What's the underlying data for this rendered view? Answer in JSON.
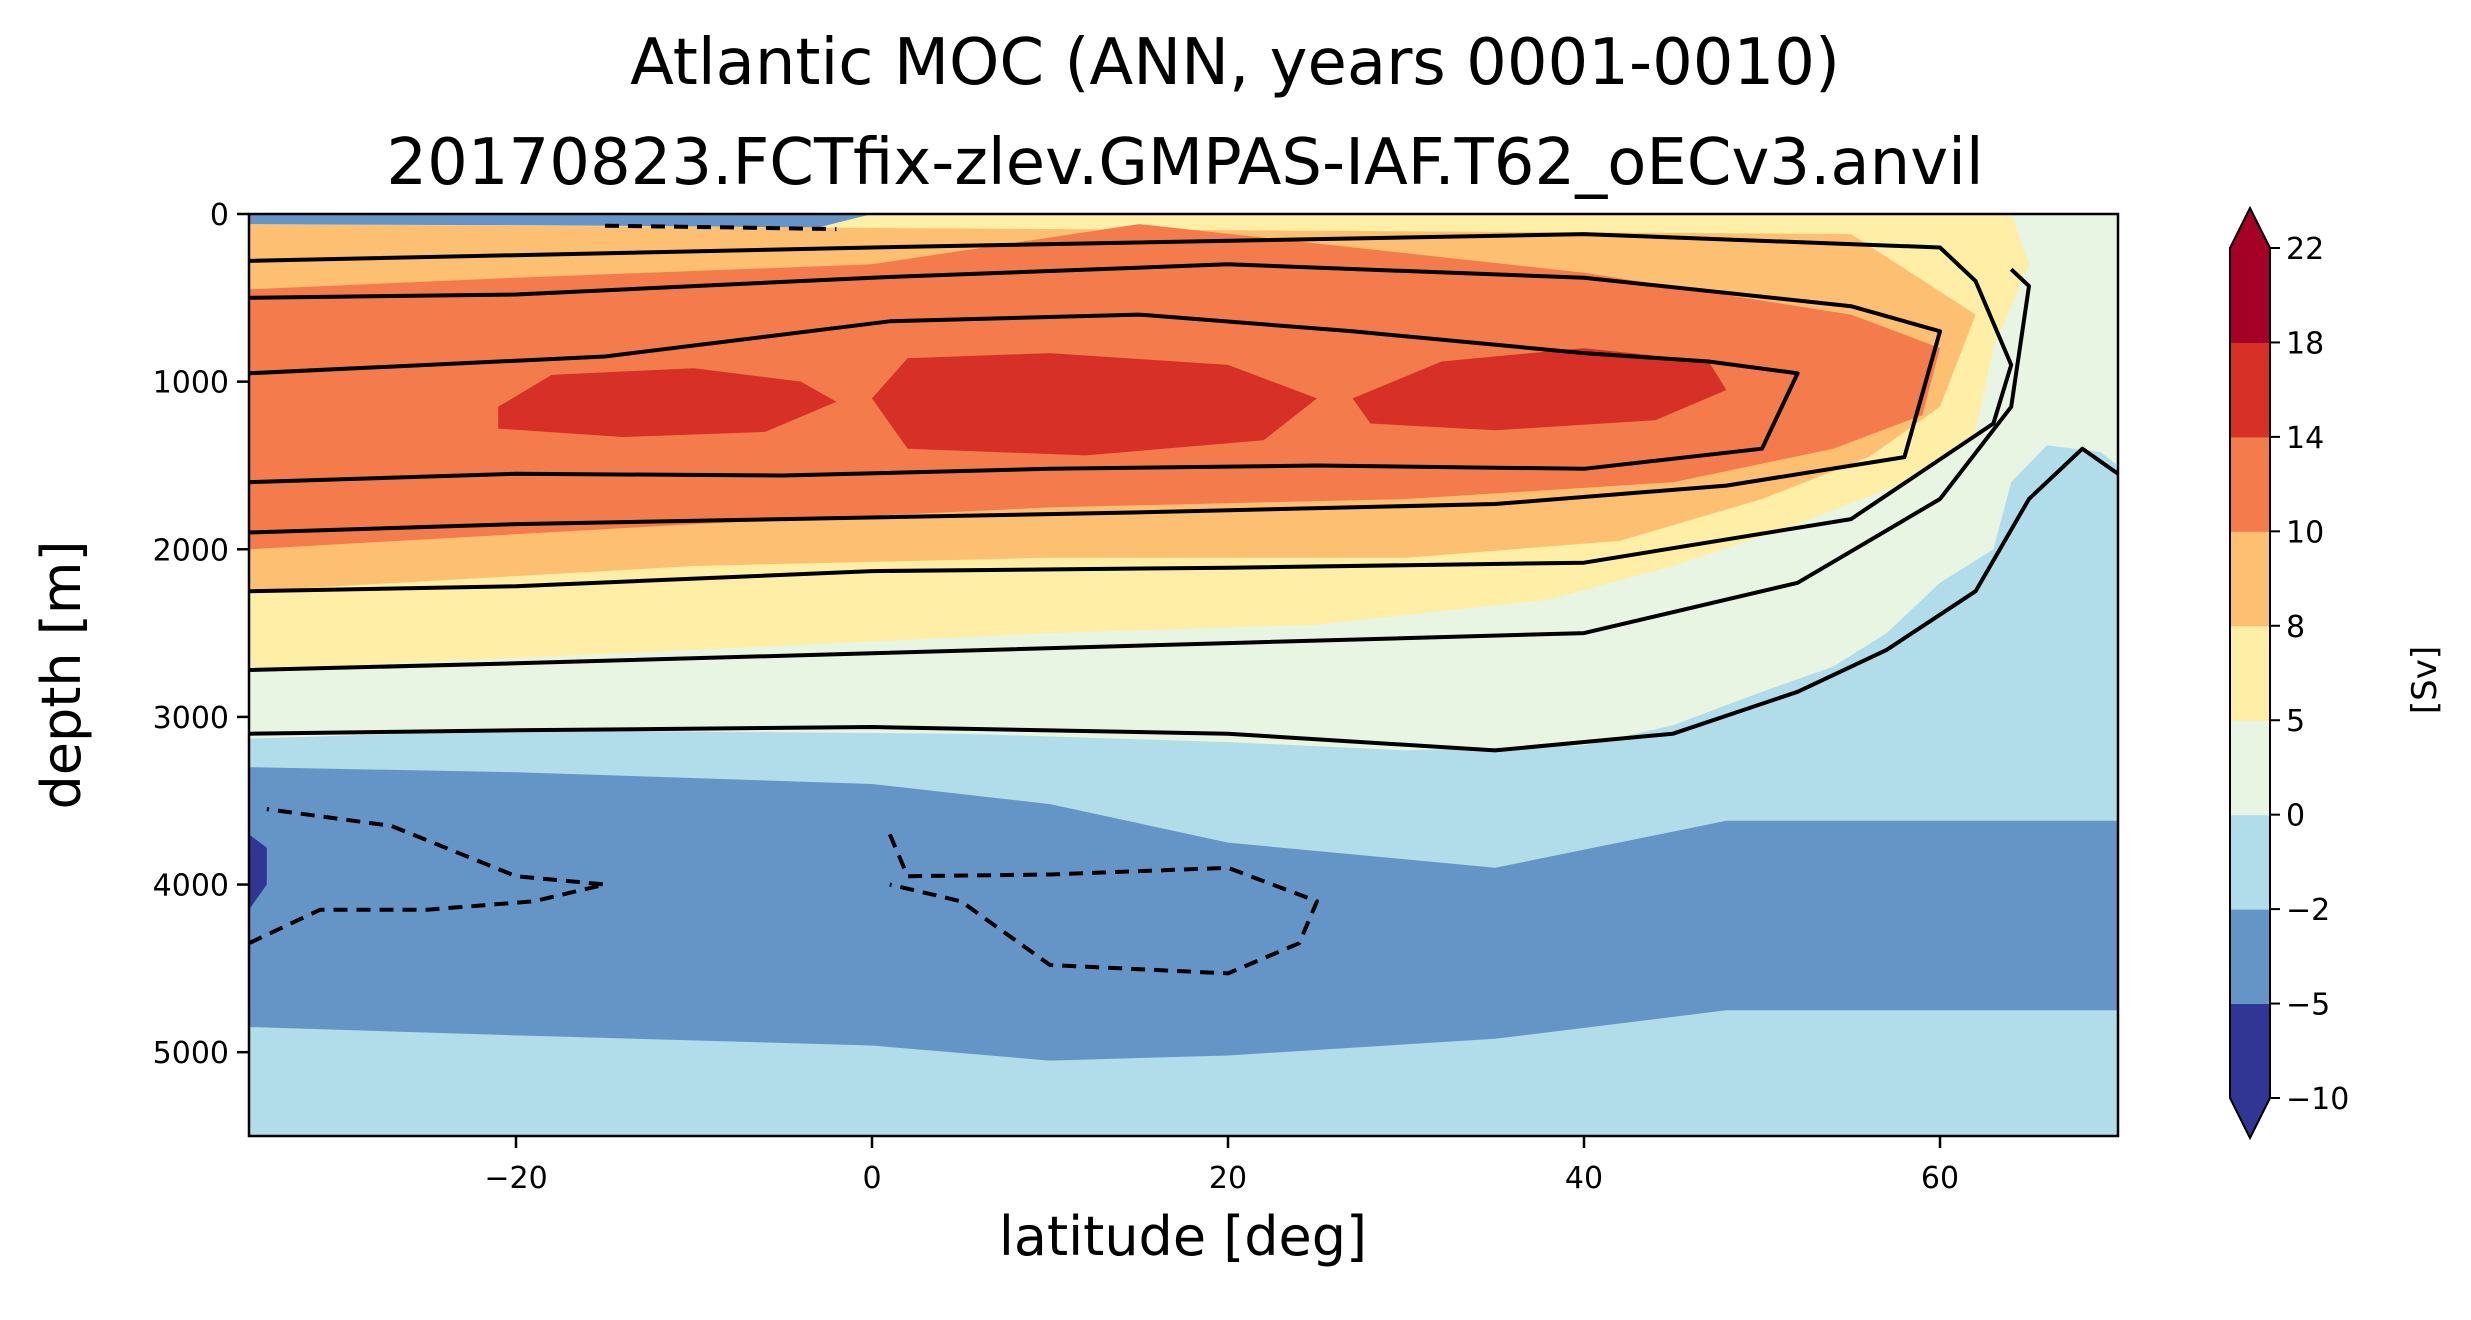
{
  "chart_data": {
    "type": "heatmap",
    "subtype": "filled-contour",
    "title": "Atlantic MOC (ANN, years 0001-0010)",
    "subtitle": "20170823.FCTfix-zlev.GMPAS-IAF.T62_oECv3.anvil",
    "xlabel": "latitude [deg]",
    "ylabel": "depth [m]",
    "xlim": [
      -35,
      70
    ],
    "ylim": [
      5500,
      0
    ],
    "y_inverted": true,
    "xticks": [
      -20,
      0,
      20,
      40,
      60
    ],
    "xtick_labels": [
      "−20",
      "0",
      "20",
      "40",
      "60"
    ],
    "yticks": [
      0,
      1000,
      2000,
      3000,
      4000,
      5000
    ],
    "ytick_labels": [
      "0",
      "1000",
      "2000",
      "3000",
      "4000",
      "5000"
    ],
    "grid": false,
    "colorbar": {
      "label": "[Sv]",
      "levels": [
        -10,
        -5,
        -2,
        0,
        5,
        8,
        10,
        14,
        18,
        22
      ],
      "tick_labels": [
        "−10",
        "−5",
        "−2",
        "0",
        "5",
        "8",
        "10",
        "14",
        "18",
        "22"
      ],
      "colors": [
        "#313695",
        "#6495c6",
        "#b1dcea",
        "#e9f5e3",
        "#feeea6",
        "#fdbf71",
        "#f47b4b",
        "#d73027",
        "#a50026"
      ],
      "extend": "both",
      "under_color": "#313695",
      "over_color": "#a50026"
    },
    "regions": [
      {
        "name": "deep-light-cell",
        "value_range": [
          -2,
          0
        ],
        "color": "#b1dcea",
        "x": [
          -35,
          70
        ],
        "depth": [
          3250,
          5500
        ]
      },
      {
        "name": "deep-negative-cell",
        "value_range": [
          -5,
          -2
        ],
        "color": "#6495c6",
        "x": [
          -35,
          70
        ],
        "depth_top": [
          3300,
          3330,
          3400,
          3520,
          3750,
          3900,
          3620,
          3620
        ],
        "depth_bottom": [
          4850,
          4900,
          4960,
          5050,
          5020,
          4920,
          4750,
          4750
        ],
        "lat_samples": [
          -35,
          -20,
          0,
          10,
          20,
          35,
          48,
          70
        ]
      },
      {
        "name": "upper-overturning-cell-peak",
        "value_range": [
          14,
          18
        ],
        "color": "#d73027",
        "approx_depth_m": [
          800,
          1450
        ],
        "approx_lat": [
          -21,
          47
        ]
      },
      {
        "name": "bottom-water-extreme",
        "value_range": [
          -10,
          -5
        ],
        "color": "#313695",
        "approx_depth_m": [
          3700,
          4150
        ],
        "approx_lat": [
          -35,
          -34
        ]
      }
    ],
    "contours": {
      "line_color": "#000000",
      "solid": "positive levels",
      "dashed": "negative levels",
      "dashed_cells": [
        {
          "approx_lat": [
            -35,
            -15
          ],
          "approx_depth_m": [
            3500,
            4450
          ]
        },
        {
          "approx_lat": [
            1,
            26
          ],
          "approx_depth_m": [
            3700,
            4600
          ]
        }
      ]
    }
  }
}
